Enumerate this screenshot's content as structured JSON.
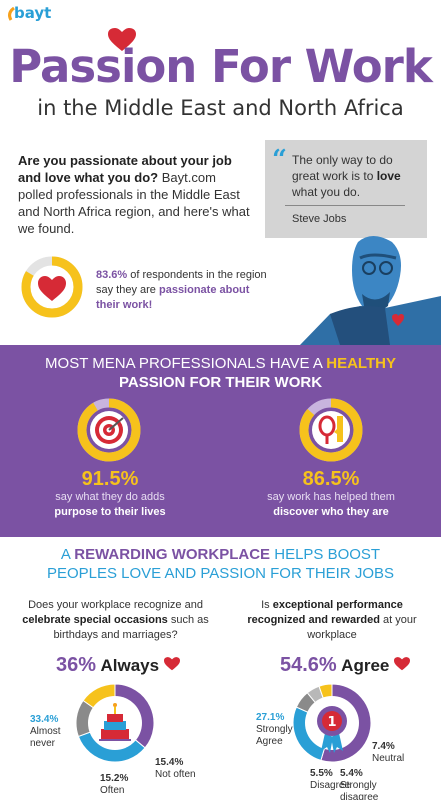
{
  "brand": {
    "logo": "bayt"
  },
  "header": {
    "title": "Passion For Work",
    "subtitle": "in the Middle East and North Africa"
  },
  "intro": {
    "lead": "Are you passionate about your job and love what you do?",
    "body": "Bayt.com polled professionals in the Middle East and North Africa region, and here's what we found."
  },
  "quote": {
    "pre": "The only way to do great work is to ",
    "emph": "love",
    "post": " what you do.",
    "author": "Steve Jobs"
  },
  "stat_passionate": {
    "value": "83.6%",
    "text_mid": " of respondents in the region say they are ",
    "text_hl": "passionate about their work!",
    "fraction": 0.836
  },
  "band": {
    "heading_line1_pre": "MOST MENA PROFESSIONALS HAVE A ",
    "heading_line1_hl": "HEALTHY",
    "heading_line2": "PASSION FOR THEIR WORK",
    "left": {
      "value": "91.5%",
      "line1": "say what they do adds",
      "line2": "purpose to their lives",
      "fraction": 0.915,
      "icon": "target-icon"
    },
    "right": {
      "value": "86.5%",
      "line1": "say work has helped them",
      "line2": "discover who they are",
      "fraction": 0.865,
      "icon": "mirror-icon"
    }
  },
  "rewarding": {
    "line1_pre": "A ",
    "line1_hl": "REWARDING WORKPLACE",
    "line1_post": " HELPS BOOST",
    "line2": "PEOPLES LOVE AND PASSION FOR THEIR JOBS"
  },
  "left_question": {
    "pre": "Does your workplace recognize and ",
    "bold": "celebrate special occasions",
    "post": " such as birthdays and marriages?",
    "headline_pct": "36%",
    "headline_word": "Always",
    "labels": [
      {
        "pct": "33.4%",
        "text": "Almost never"
      },
      {
        "pct": "15.4%",
        "text": "Not often"
      },
      {
        "pct": "15.2%",
        "text": "Often"
      }
    ]
  },
  "right_question": {
    "pre": "Is ",
    "bold": "exceptional performance recognized and rewarded",
    "post": " at your workplace",
    "headline_pct": "54.6%",
    "headline_word": "Agree",
    "labels": [
      {
        "pct": "27.1%",
        "text": "Strongly Agree"
      },
      {
        "pct": "7.4%",
        "text": "Neutral"
      },
      {
        "pct": "5.5%",
        "text": "Disagree"
      },
      {
        "pct": "5.4%",
        "text": "Strongly disagree"
      }
    ]
  },
  "chart_data": [
    {
      "type": "pie",
      "categories": [
        "Always",
        "Almost never",
        "Not often",
        "Often"
      ],
      "values": [
        36,
        33.4,
        15.4,
        15.2
      ],
      "colors": [
        "#7b52a3",
        "#2a9fd6",
        "#8a8a8a",
        "#f6c21c"
      ]
    },
    {
      "type": "pie",
      "categories": [
        "Agree",
        "Strongly Agree",
        "Neutral",
        "Disagree",
        "Strongly disagree"
      ],
      "values": [
        54.6,
        27.1,
        7.4,
        5.5,
        5.4
      ],
      "colors": [
        "#7b52a3",
        "#2a9fd6",
        "#8a8a8a",
        "#b8b8b8",
        "#f6c21c"
      ]
    }
  ],
  "colors": {
    "purple": "#7b52a3",
    "blue": "#2a9fd6",
    "yellow": "#f6c21c",
    "red": "#d62a36",
    "grey": "#d4d4d4"
  }
}
